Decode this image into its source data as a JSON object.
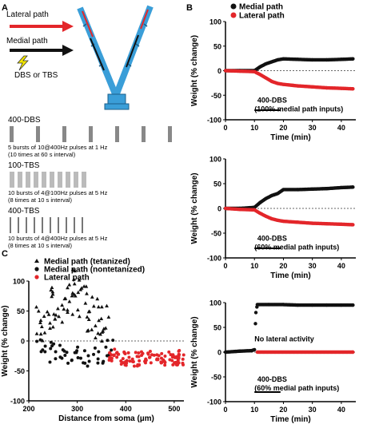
{
  "panels": {
    "A": "A",
    "B": "B",
    "C": "C"
  },
  "neuron": {
    "lateral": "Lateral path",
    "medial": "Medial path",
    "stim": "DBS or TBS",
    "colors": {
      "dendrite": "#3a9ed8",
      "lateral": "#e3262a",
      "medial": "#111111",
      "bolt": "#f3e600"
    }
  },
  "protocols": [
    {
      "title": "400-DBS",
      "desc": [
        "5 bursts of 10@400Hz pulses at 1 Hz",
        "(10 times at 60 s interval)"
      ],
      "bars": 7,
      "style": "wide"
    },
    {
      "title": "100-TBS",
      "desc": [
        "10 bursts of 4@100Hz pulses at 5 Hz",
        "(8 times at 10 s interval)"
      ],
      "bars": 10,
      "style": "mid"
    },
    {
      "title": "400-TBS",
      "desc": [
        "10 bursts of 4@400Hz pulses at 5 Hz",
        "(8 times at 10 s interval)"
      ],
      "bars": 10,
      "style": "thin"
    }
  ],
  "colors": {
    "medial": "#111111",
    "lateral": "#e3262a",
    "dotted": "#666666"
  },
  "chart_data": [
    {
      "id": "B1",
      "type": "scatter",
      "xlabel": "Time (min)",
      "ylabel": "Weight (% change)",
      "xlim": [
        0,
        45
      ],
      "ylim": [
        -100,
        100
      ],
      "xticks": [
        0,
        10,
        20,
        30,
        40
      ],
      "yticks": [
        -100,
        -50,
        0,
        50,
        100
      ],
      "legend": [
        "Medial path",
        "Lateral path"
      ],
      "annotation": [
        "400-DBS",
        "(100% medial path inputs)"
      ],
      "stim_bar": [
        10,
        19
      ],
      "series": [
        {
          "name": "Medial path",
          "color": "#111111",
          "x": [
            0,
            5,
            10,
            12,
            14,
            16,
            18,
            20,
            25,
            30,
            35,
            40,
            44
          ],
          "y": [
            0,
            0,
            0,
            8,
            14,
            18,
            22,
            24,
            23,
            22,
            22,
            23,
            24
          ]
        },
        {
          "name": "Lateral path",
          "color": "#e3262a",
          "x": [
            0,
            5,
            10,
            12,
            14,
            16,
            18,
            20,
            25,
            30,
            35,
            40,
            44
          ],
          "y": [
            0,
            -1,
            -2,
            -8,
            -15,
            -22,
            -26,
            -28,
            -31,
            -33,
            -35,
            -36,
            -37
          ]
        }
      ]
    },
    {
      "id": "B2",
      "type": "scatter",
      "xlabel": "Time (min)",
      "ylabel": "Weight (% change)",
      "xlim": [
        0,
        45
      ],
      "ylim": [
        -100,
        100
      ],
      "xticks": [
        0,
        10,
        20,
        30,
        40
      ],
      "yticks": [
        -100,
        -50,
        0,
        50,
        100
      ],
      "annotation": [
        "400-DBS",
        "(60% medial path inputs)"
      ],
      "stim_bar": [
        10,
        19
      ],
      "series": [
        {
          "name": "Medial path",
          "color": "#111111",
          "x": [
            0,
            5,
            10,
            12,
            14,
            16,
            18,
            19,
            20,
            25,
            30,
            35,
            40,
            44
          ],
          "y": [
            0,
            0,
            2,
            12,
            20,
            26,
            30,
            34,
            38,
            38,
            39,
            40,
            42,
            43
          ]
        },
        {
          "name": "Lateral path",
          "color": "#e3262a",
          "x": [
            0,
            5,
            10,
            12,
            14,
            16,
            18,
            20,
            25,
            30,
            35,
            40,
            44
          ],
          "y": [
            0,
            -2,
            -3,
            -10,
            -16,
            -21,
            -24,
            -26,
            -28,
            -30,
            -31,
            -32,
            -33
          ]
        }
      ]
    },
    {
      "id": "B3",
      "type": "scatter",
      "xlabel": "Time (min)",
      "ylabel": "Weight (% change)",
      "xlim": [
        0,
        45
      ],
      "ylim": [
        -100,
        100
      ],
      "xticks": [
        0,
        10,
        20,
        30,
        40
      ],
      "yticks": [
        -100,
        -50,
        0,
        50,
        100
      ],
      "annotation": [
        "400-DBS",
        "(60% medial path inputs)"
      ],
      "note": "No lateral activity",
      "stim_bar": [
        10,
        19
      ],
      "series": [
        {
          "name": "Medial path",
          "color": "#111111",
          "x": [
            0,
            5,
            9,
            10,
            10.5,
            11,
            15,
            20,
            25,
            30,
            35,
            40,
            44
          ],
          "y": [
            0,
            2,
            3,
            5,
            80,
            96,
            96,
            96,
            95,
            95,
            95,
            95,
            95
          ]
        },
        {
          "name": "Lateral path",
          "color": "#e3262a",
          "x": [
            11,
            44
          ],
          "y": [
            0,
            0
          ]
        }
      ]
    },
    {
      "id": "C",
      "type": "scatter",
      "xlabel": "Distance from soma (µm)",
      "ylabel": "Weight (% change)",
      "xlim": [
        200,
        520
      ],
      "ylim": [
        -100,
        100
      ],
      "xticks": [
        200,
        300,
        400,
        500
      ],
      "yticks": [
        -100,
        -50,
        0,
        50,
        100
      ],
      "legend": [
        "Medial path (tetanized)",
        "Medial path (nontetanized)",
        "Lateral path"
      ],
      "series": [
        {
          "name": "Medial path (tetanized)",
          "marker": "triangle",
          "color": "#111111",
          "x": [
            225,
            240,
            255,
            270,
            285,
            300,
            315,
            330,
            345,
            360
          ],
          "y": [
            30,
            45,
            55,
            60,
            70,
            85,
            65,
            50,
            40,
            30
          ],
          "spread": 35
        },
        {
          "name": "Medial path (nontetanized)",
          "marker": "circle",
          "color": "#111111",
          "x": [
            225,
            245,
            265,
            285,
            305,
            325,
            345,
            365
          ],
          "y": [
            -15,
            -20,
            -25,
            -20,
            -25,
            -25,
            -20,
            -15
          ],
          "spread": 18
        },
        {
          "name": "Lateral path",
          "marker": "circle",
          "color": "#e3262a",
          "x": [
            375,
            400,
            425,
            450,
            475,
            500,
            515
          ],
          "y": [
            -25,
            -30,
            -30,
            -28,
            -30,
            -30,
            -28
          ],
          "spread": 12
        }
      ]
    }
  ]
}
